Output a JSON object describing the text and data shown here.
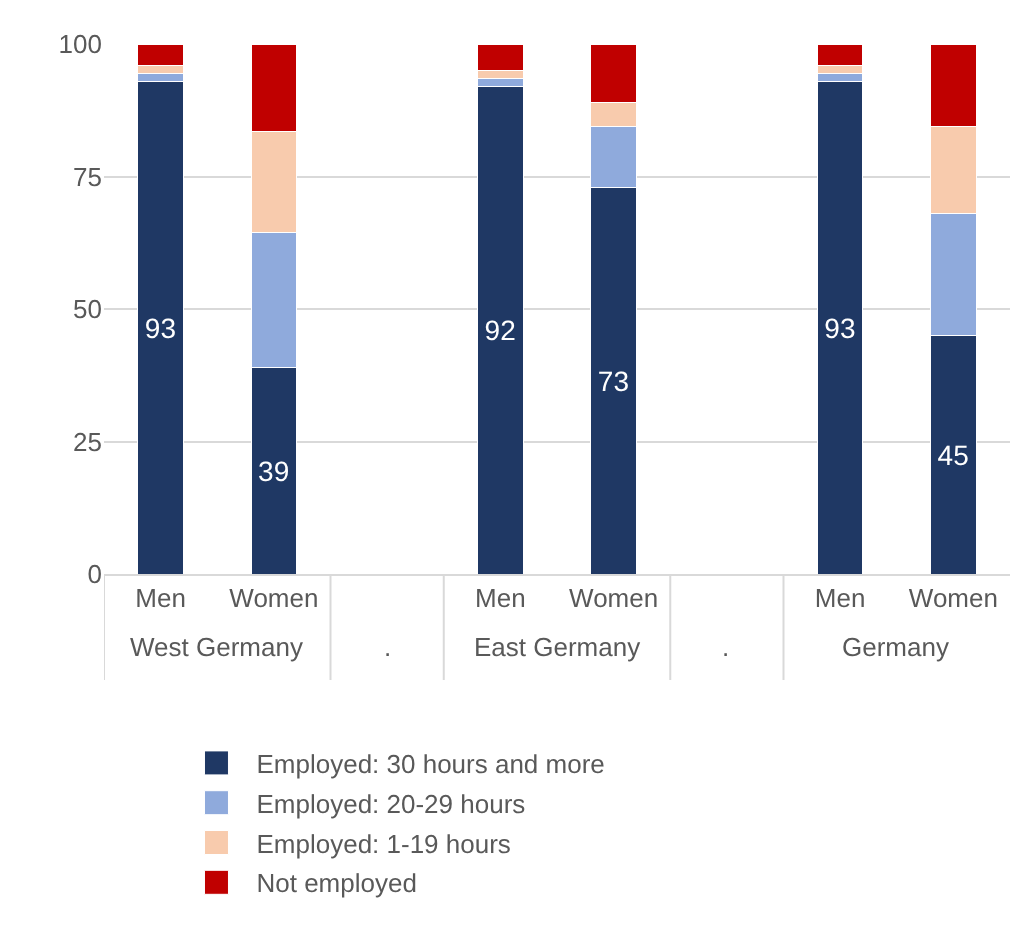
{
  "chart_data": {
    "type": "bar",
    "stacked": true,
    "categories": [
      "Men",
      "Women",
      null,
      "Men",
      "Women",
      null,
      "Men",
      "Women"
    ],
    "series": [
      {
        "name": "Employed: 30 hours and more",
        "color": "#1f3864",
        "values": [
          93,
          39,
          null,
          92,
          73,
          null,
          93,
          45
        ],
        "value_labels": [
          "93",
          "39",
          null,
          "92",
          "73",
          null,
          "93",
          "45"
        ]
      },
      {
        "name": "Employed: 20-29 hours",
        "color": "#8faadc",
        "values": [
          1.5,
          25.5,
          null,
          1.5,
          11.5,
          null,
          1.5,
          23
        ]
      },
      {
        "name": "Employed: 1-19 hours",
        "color": "#f8cbad",
        "values": [
          1.5,
          19,
          null,
          1.5,
          4.5,
          null,
          1.5,
          16.5
        ]
      },
      {
        "name": "Not employed",
        "color": "#c00000",
        "values": [
          4,
          16.5,
          null,
          5,
          11,
          null,
          4,
          15.5
        ]
      }
    ],
    "annotations": [
      "West Germany",
      ".",
      "East Germany",
      ".",
      "Germany"
    ],
    "ylim": [
      0,
      100
    ],
    "yticks": [
      0,
      25,
      50,
      75,
      100
    ],
    "grid": "y",
    "legend": "bottom"
  }
}
